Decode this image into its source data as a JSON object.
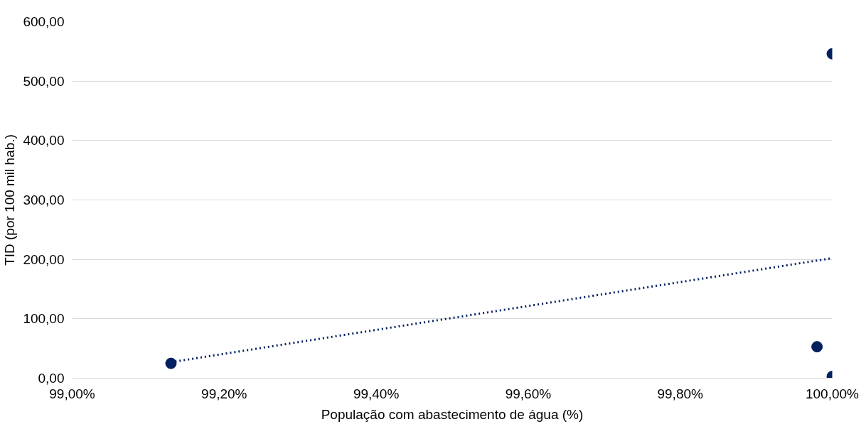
{
  "chart_data": {
    "type": "scatter",
    "xlabel": "População com abastecimento de água (%)",
    "ylabel": "TID (por 100 mil hab.)",
    "xlim": [
      99.0,
      100.0
    ],
    "xticks": [
      {
        "value": 99.0,
        "label": "99,00%"
      },
      {
        "value": 99.2,
        "label": "99,20%"
      },
      {
        "value": 99.4,
        "label": "99,40%"
      },
      {
        "value": 99.6,
        "label": "99,60%"
      },
      {
        "value": 99.8,
        "label": "99,80%"
      },
      {
        "value": 100.0,
        "label": "100,00%"
      }
    ],
    "ylim": [
      0,
      600
    ],
    "yticks": [
      {
        "value": 0,
        "label": "0,00"
      },
      {
        "value": 100,
        "label": "100,00"
      },
      {
        "value": 200,
        "label": "200,00"
      },
      {
        "value": 300,
        "label": "300,00"
      },
      {
        "value": 400,
        "label": "400,00"
      },
      {
        "value": 500,
        "label": "500,00"
      },
      {
        "value": 600,
        "label": "600,00"
      }
    ],
    "grid": "y",
    "series": [
      {
        "marker": "circle",
        "color": "#002060",
        "x": [
          99.13,
          99.98,
          100.0,
          100.0
        ],
        "values": [
          25,
          53,
          3,
          546
        ]
      },
      {
        "type": "line",
        "color": "#002060",
        "line_style": "dotted",
        "x": [
          99.13,
          100.0
        ],
        "values": [
          27,
          202
        ]
      }
    ]
  }
}
